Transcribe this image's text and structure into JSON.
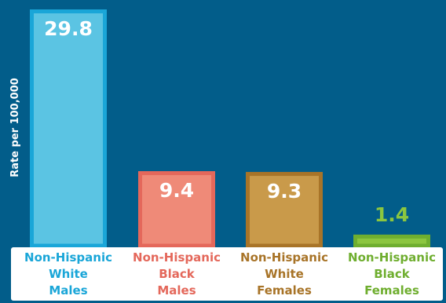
{
  "chart_data": {
    "type": "bar",
    "ylabel": "Rate per 100,000",
    "ylim": [
      0,
      29.8
    ],
    "categories": [
      [
        "Non-Hispanic",
        "White",
        "Males"
      ],
      [
        "Non-Hispanic",
        "Black",
        "Males"
      ],
      [
        "Non-Hispanic",
        "White",
        "Females"
      ],
      [
        "Non-Hispanic",
        "Black",
        "Females"
      ]
    ],
    "values": [
      29.8,
      9.4,
      9.3,
      1.4
    ],
    "value_labels": [
      "29.8",
      "9.4",
      "9.3",
      "1.4"
    ],
    "colors": [
      {
        "fill": "#5bc4e3",
        "border": "#1aa6d8",
        "label": "#1aa6d8"
      },
      {
        "fill": "#ef8a78",
        "border": "#e4685b",
        "label": "#e4685b"
      },
      {
        "fill": "#c99a4a",
        "border": "#a87428",
        "label": "#a87428"
      },
      {
        "fill": "#8cc63f",
        "border": "#6fae2f",
        "label": "#6fae2f"
      }
    ],
    "value_label_colors": [
      "#ffffff",
      "#ffffff",
      "#ffffff",
      "#8cc63f"
    ],
    "background": "#025d8a",
    "grid": false
  }
}
